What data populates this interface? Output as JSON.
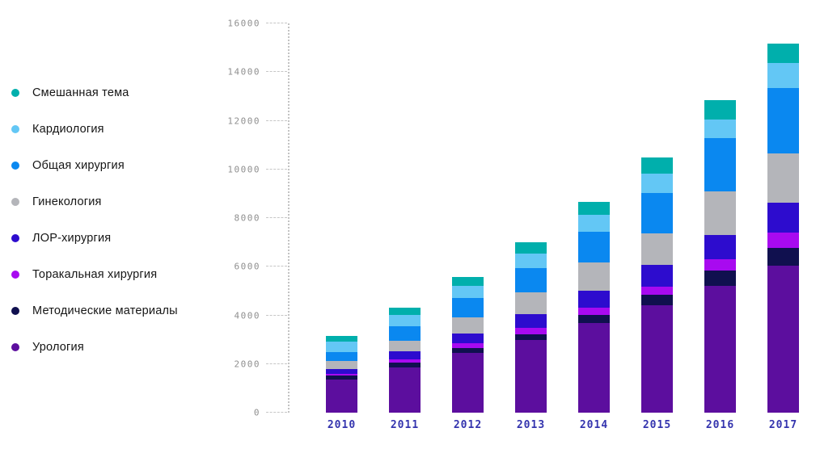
{
  "chart_data": {
    "type": "bar",
    "stacked": true,
    "title": "",
    "xlabel": "",
    "ylabel": "",
    "grid": false,
    "legend_position": "left",
    "ylim": [
      0,
      16000
    ],
    "yticks": [
      0,
      2000,
      4000,
      6000,
      8000,
      10000,
      12000,
      14000,
      16000
    ],
    "categories": [
      "2010",
      "2011",
      "2012",
      "2013",
      "2014",
      "2015",
      "2016",
      "2017"
    ],
    "series": [
      {
        "name": "Урология",
        "color": "#5C0E9E",
        "values": [
          1350,
          1850,
          2450,
          3000,
          3700,
          4400,
          5200,
          6050
        ]
      },
      {
        "name": "Методические материалы",
        "color": "#10104F",
        "values": [
          170,
          200,
          200,
          220,
          330,
          450,
          650,
          720
        ]
      },
      {
        "name": "Торакальная хирургия",
        "color": "#A80AF0",
        "values": [
          60,
          130,
          200,
          270,
          300,
          330,
          450,
          630
        ]
      },
      {
        "name": "ЛОР-хирургия",
        "color": "#2D0CCE",
        "values": [
          230,
          330,
          420,
          550,
          700,
          900,
          1000,
          1230
        ]
      },
      {
        "name": "Гинекология",
        "color": "#B4B5BA",
        "values": [
          300,
          440,
          640,
          900,
          1150,
          1300,
          1800,
          2030
        ]
      },
      {
        "name": "Общая хирургия",
        "color": "#0A88F0",
        "values": [
          380,
          600,
          800,
          1000,
          1250,
          1650,
          2200,
          2700
        ]
      },
      {
        "name": "Кардиология",
        "color": "#63C7F5",
        "values": [
          450,
          480,
          500,
          600,
          700,
          800,
          750,
          1000
        ]
      },
      {
        "name": "Смешанная тема",
        "color": "#00AFAC",
        "values": [
          200,
          300,
          370,
          450,
          550,
          650,
          800,
          800
        ]
      }
    ],
    "axis_color": "#8f8f8f",
    "xlabel_color": "#3434ae"
  }
}
